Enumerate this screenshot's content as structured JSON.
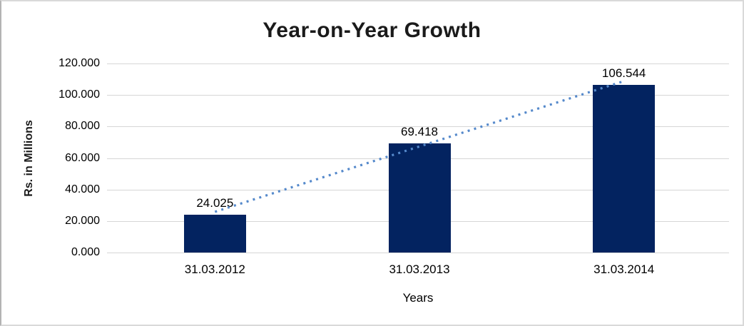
{
  "chart_data": {
    "type": "bar",
    "title": "Year-on-Year Growth",
    "xlabel": "Years",
    "ylabel": "Rs. in Millions",
    "categories": [
      "31.03.2012",
      "31.03.2013",
      "31.03.2014"
    ],
    "values": [
      24.025,
      69.418,
      106.544
    ],
    "data_labels": [
      "24.025",
      "69.418",
      "106.544"
    ],
    "ylim": [
      0,
      120
    ],
    "ytick_step": 20,
    "ytick_labels": [
      "0.000",
      "20.000",
      "40.000",
      "60.000",
      "80.000",
      "100.000",
      "120.000"
    ],
    "grid": true,
    "legend_position": "none",
    "bar_color": "#032360",
    "trendline": {
      "type": "linear",
      "style": "dotted",
      "color": "#5589CB"
    },
    "gridline_color": "#d6d6d6",
    "background_color": "#ffffff",
    "border_color": "#d9d9d9"
  }
}
